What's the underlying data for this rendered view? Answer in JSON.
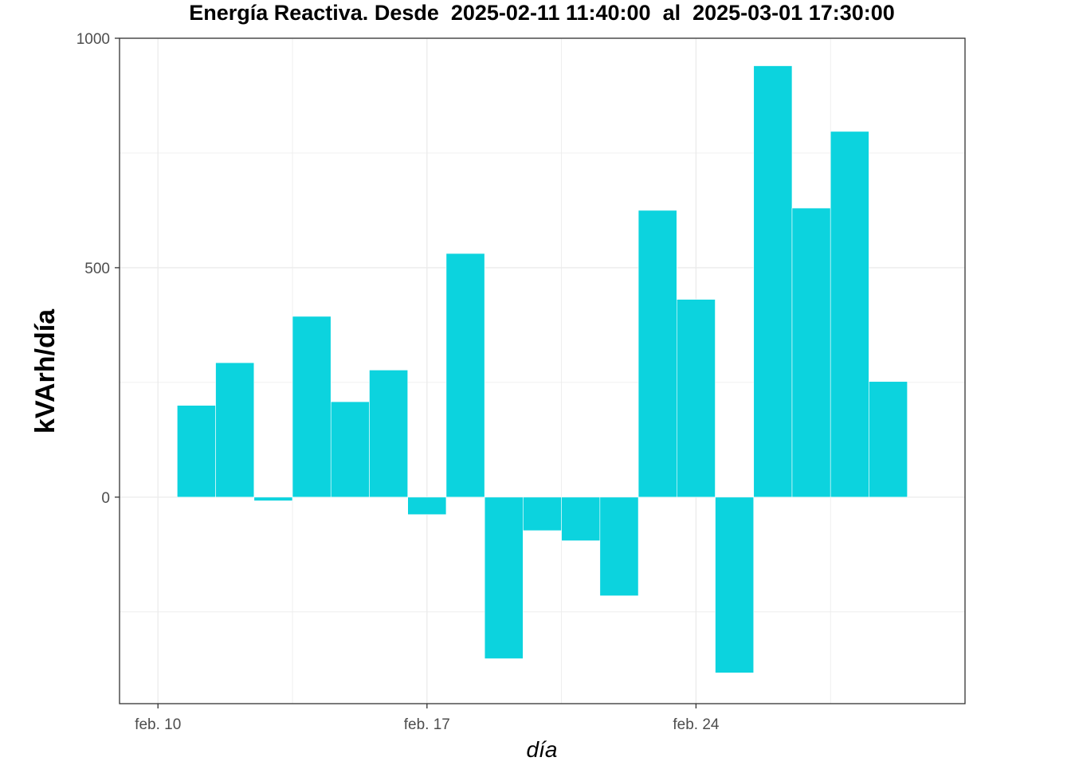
{
  "chart_data": {
    "type": "bar",
    "title": "Energía Reactiva. Desde  2025-02-11 11:40:00  al  2025-03-01 17:30:00",
    "xlabel": "día",
    "ylabel": "kVArh/día",
    "x_ticks": [
      {
        "date": "2025-02-10",
        "label": "feb. 10"
      },
      {
        "date": "2025-02-17",
        "label": "feb. 17"
      },
      {
        "date": "2025-02-24",
        "label": "feb. 24"
      }
    ],
    "y_ticks": [
      0,
      500,
      1000
    ],
    "ylim": [
      -450,
      1000
    ],
    "xlim": [
      "2025-02-09",
      "2025-03-03"
    ],
    "grid": true,
    "bar_color": "#0CD3DE",
    "x": [
      "2025-02-11",
      "2025-02-12",
      "2025-02-13",
      "2025-02-14",
      "2025-02-15",
      "2025-02-16",
      "2025-02-17",
      "2025-02-18",
      "2025-02-19",
      "2025-02-20",
      "2025-02-21",
      "2025-02-22",
      "2025-02-23",
      "2025-02-24",
      "2025-02-25",
      "2025-02-26",
      "2025-02-27",
      "2025-02-28",
      "2025-03-01"
    ],
    "values": [
      200,
      293,
      -8,
      394,
      208,
      277,
      -38,
      531,
      -352,
      -73,
      -95,
      -215,
      625,
      431,
      -383,
      940,
      630,
      797,
      252
    ]
  }
}
